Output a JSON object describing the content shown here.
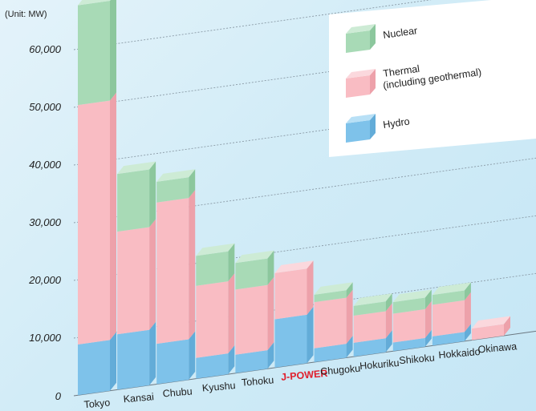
{
  "chart_data": {
    "type": "bar",
    "stacked": true,
    "unit_label": "(Unit: MW)",
    "categories": [
      "Tokyo",
      "Kansai",
      "Chubu",
      "Kyushu",
      "Tohoku",
      "J-POWER",
      "Chugoku",
      "Hokuriku",
      "Shikoku",
      "Hokkaido",
      "Okinawa"
    ],
    "highlight_category": "J-POWER",
    "series": [
      {
        "name": "Hydro",
        "values": [
          8800,
          9600,
          7000,
          3600,
          3200,
          8400,
          2400,
          2400,
          1500,
          1600,
          0
        ]
      },
      {
        "name": "Thermal (including geothermal)",
        "values": [
          41500,
          17800,
          24500,
          12500,
          11300,
          8000,
          8000,
          4700,
          5000,
          5500,
          2000
        ]
      },
      {
        "name": "Nuclear",
        "values": [
          17300,
          10000,
          3600,
          5200,
          4600,
          0,
          1300,
          1700,
          2000,
          1700,
          0
        ]
      }
    ],
    "y_ticks": [
      "0",
      "10,000",
      "20,000",
      "30,000",
      "40,000",
      "50,000",
      "60,000"
    ],
    "ylim": [
      0,
      70000
    ],
    "grid": true,
    "legend": {
      "position": "top-right",
      "items": [
        {
          "label": "Nuclear",
          "label_lines": [
            "Nuclear"
          ]
        },
        {
          "label": "Thermal (including geothermal)",
          "label_lines": [
            "Thermal",
            "(including geothermal)"
          ]
        },
        {
          "label": "Hydro",
          "label_lines": [
            "Hydro"
          ]
        }
      ]
    },
    "colors": {
      "Nuclear": {
        "front": "#a8dab6",
        "side": "#8cc79d",
        "top": "#cdebd5"
      },
      "Thermal (including geothermal)": {
        "front": "#f9bcc3",
        "side": "#eda1aa",
        "top": "#fbd8dd"
      },
      "Hydro": {
        "front": "#7ec2ea",
        "side": "#63acd8",
        "top": "#b8e0f6"
      },
      "highlight_label": "#e01e2c"
    }
  }
}
